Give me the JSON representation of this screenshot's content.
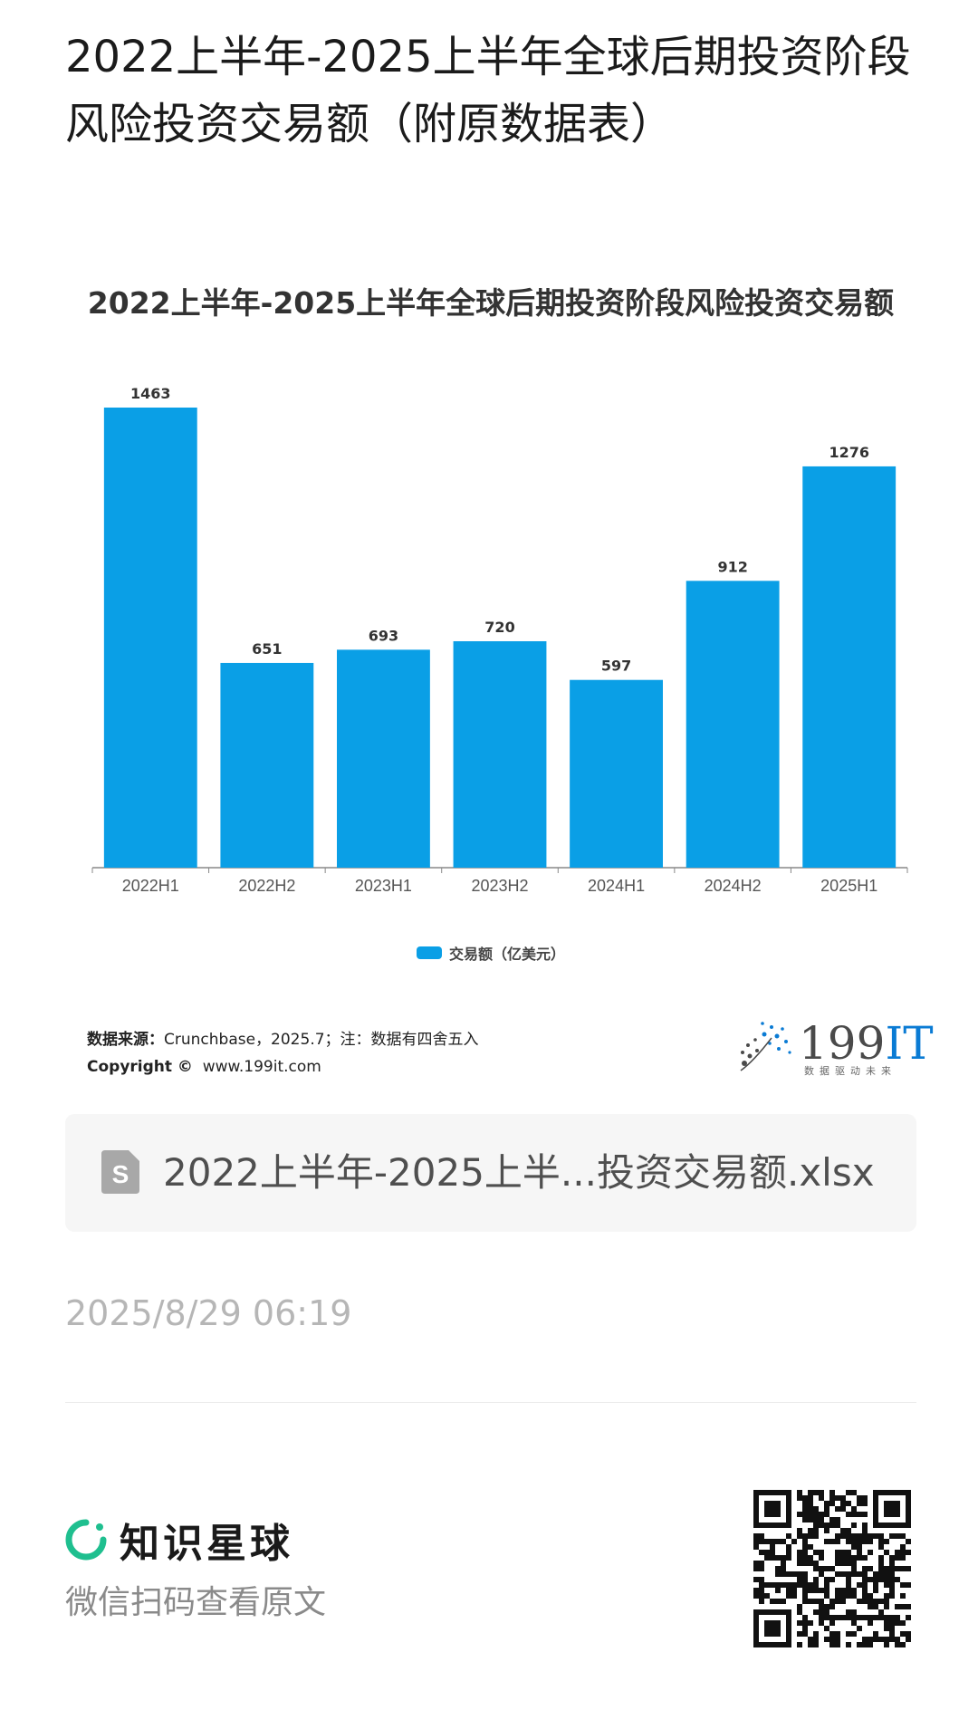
{
  "post": {
    "title": "2022上半年-2025上半年全球后期投资阶段风险投资交易额（附原数据表）"
  },
  "chart": {
    "title": "2022上半年-2025上半年全球后期投资阶段风险投资交易额",
    "legend_label": "交易额（亿美元）"
  },
  "chart_data": {
    "type": "bar",
    "title": "2022上半年-2025上半年全球后期投资阶段风险投资交易额",
    "categories": [
      "2022H1",
      "2022H2",
      "2023H1",
      "2023H2",
      "2024H1",
      "2024H2",
      "2025H1"
    ],
    "series": [
      {
        "name": "交易额（亿美元）",
        "values": [
          1463,
          651,
          693,
          720,
          597,
          912,
          1276
        ]
      }
    ],
    "ylim": [
      0,
      1463
    ],
    "bar_color": "#0a9fe6",
    "data_labels": true,
    "grid": false,
    "legend_position": "bottom"
  },
  "source": {
    "label": "数据来源：",
    "text": "Crunchbase，2025.7；注：数据有四舍五入",
    "copyright_label": "Copyright ©",
    "copyright_url": "www.199it.com"
  },
  "logo": {
    "number": "199",
    "suffix": "IT",
    "slogan": "数据驱动未来"
  },
  "attachment": {
    "file_name": "2022上半年-2025上半...投资交易额.xlsx",
    "icon": "spreadsheet-file-icon"
  },
  "timestamp": "2025/8/29 06:19",
  "footer": {
    "brand_name": "知识星球",
    "scan_text": "微信扫码查看原文"
  },
  "colors": {
    "bar": "#0a9fe6",
    "brand_green": "#1fbf8f",
    "logo_blue": "#0a7bd4"
  }
}
